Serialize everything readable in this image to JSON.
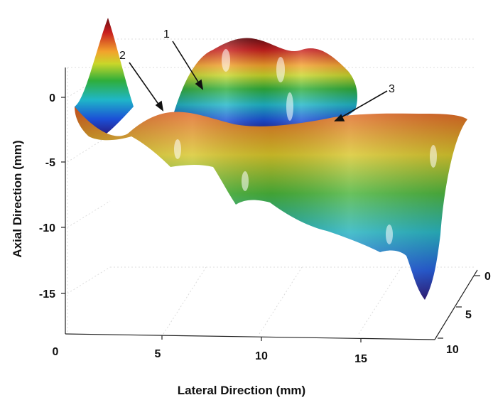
{
  "chart_data": {
    "type": "surface",
    "xlabel": "Lateral Direction (mm)",
    "ylabel": "Axial Direction (mm)",
    "zlabel": "",
    "x_ticks": [
      "0",
      "5",
      "10",
      "15"
    ],
    "y_ticks": [
      "0",
      "-5",
      "-10",
      "-15"
    ],
    "z_ticks": [
      "0",
      "5",
      "10"
    ],
    "x_range": [
      0,
      18
    ],
    "y_range": [
      -18,
      2
    ],
    "z_range": [
      0,
      10
    ],
    "grid": true,
    "colormap": [
      "#2a0f6e",
      "#1b4fd6",
      "#1fb6c8",
      "#2fae3a",
      "#c9d62a",
      "#f2a32c",
      "#c81e1e",
      "#6a0d12"
    ],
    "annotations": [
      "1",
      "2",
      "3"
    ]
  }
}
